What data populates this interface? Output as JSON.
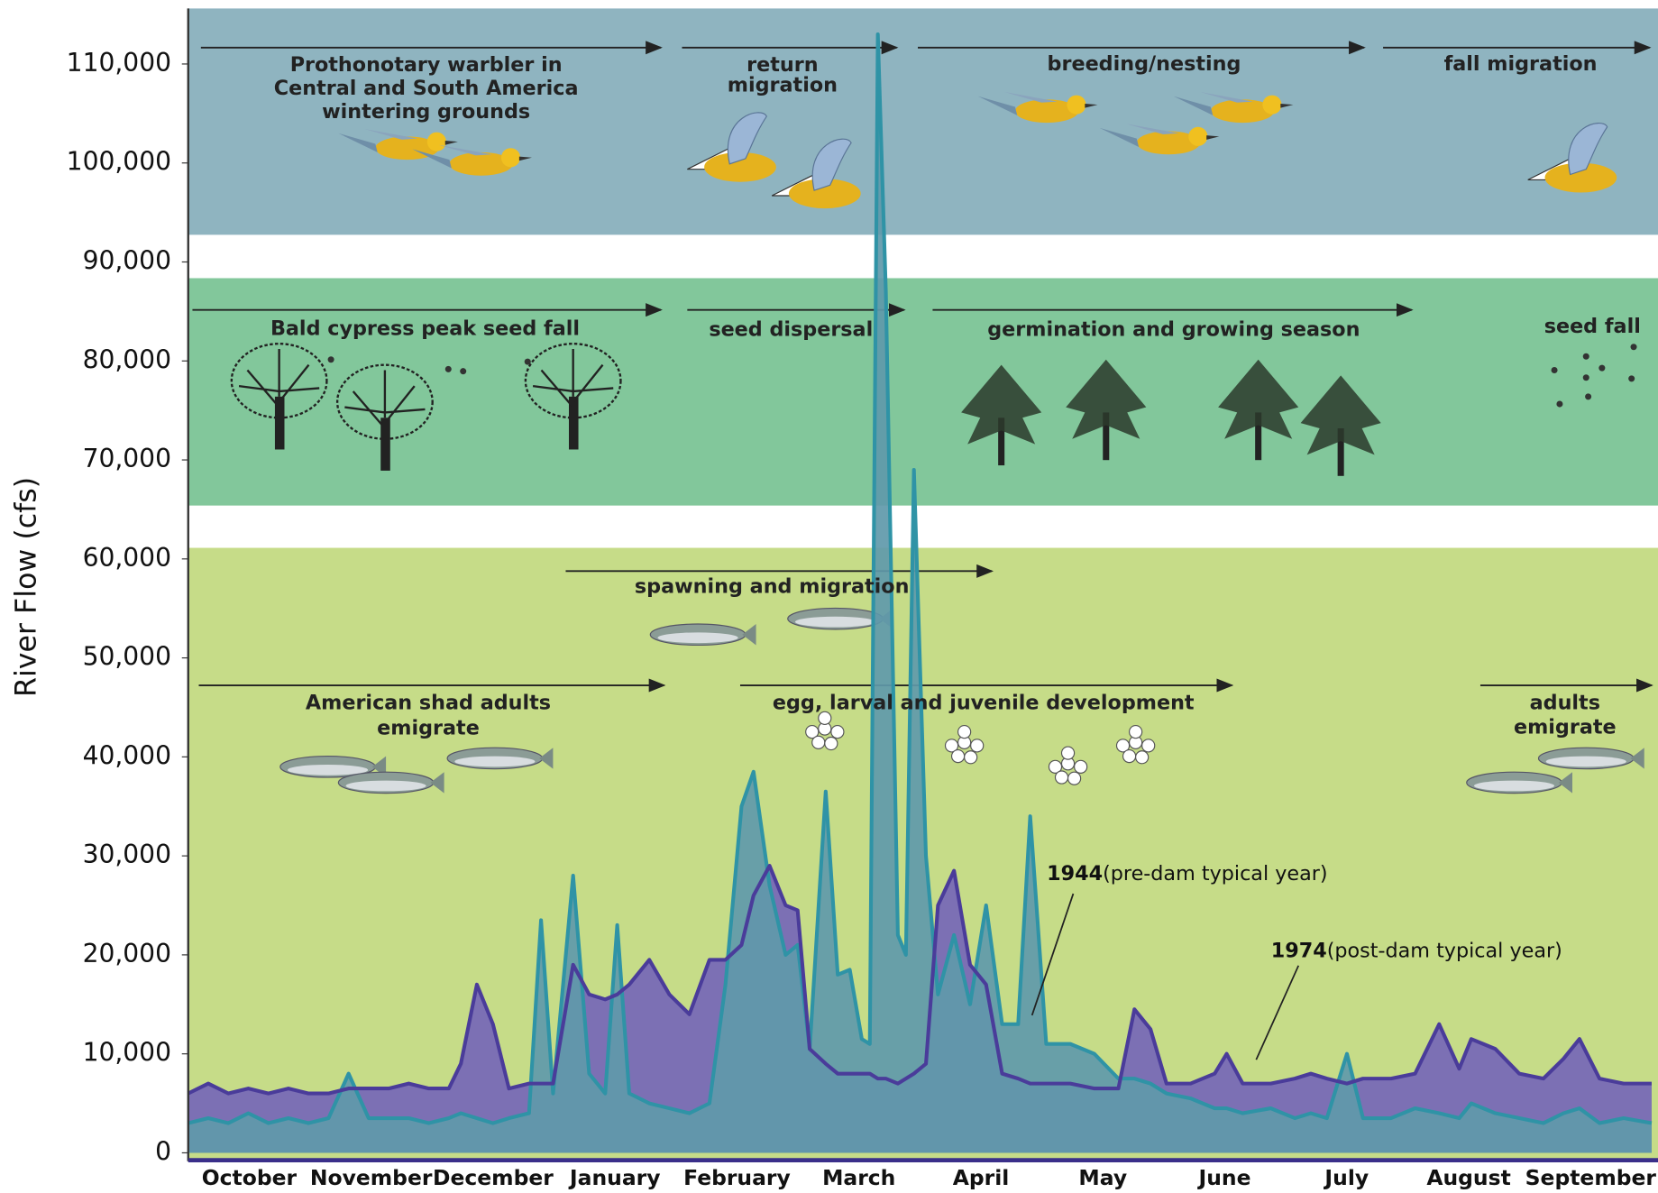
{
  "chart_data": {
    "type": "area",
    "ylabel": "River Flow (cfs)",
    "categories": [
      "October",
      "November",
      "December",
      "January",
      "February",
      "March",
      "April",
      "May",
      "June",
      "July",
      "August",
      "September"
    ],
    "xlim": [
      0,
      365
    ],
    "ylim": [
      -1000,
      115500
    ],
    "yticks": [
      0,
      {
        "value": 10000,
        "label": "10,000"
      },
      {
        "value": 20000,
        "label": "20,000"
      },
      {
        "value": 30000,
        "label": "30,000"
      },
      {
        "value": 40000,
        "label": "40,000"
      },
      {
        "value": 50000,
        "label": "50,000"
      },
      {
        "value": 60000,
        "label": "60,000"
      },
      {
        "value": 70000,
        "label": "70,000"
      },
      {
        "value": 80000,
        "label": "80,000"
      },
      {
        "value": 90000,
        "label": "90,000"
      },
      {
        "value": 100000,
        "label": "100,000"
      },
      {
        "value": 110000,
        "label": "110,000"
      }
    ],
    "grid": false,
    "x": [
      0,
      5,
      10,
      15,
      20,
      25,
      30,
      35,
      40,
      45,
      50,
      55,
      60,
      65,
      68,
      72,
      76,
      80,
      85,
      88,
      91,
      96,
      100,
      104,
      107,
      110,
      115,
      120,
      125,
      130,
      134,
      138,
      141,
      145,
      149,
      152,
      155,
      159,
      162,
      165,
      168,
      170,
      172,
      174,
      177,
      179,
      181,
      184,
      187,
      191,
      195,
      199,
      203,
      207,
      210,
      214,
      220,
      226,
      232,
      236,
      240,
      244,
      250,
      256,
      259,
      263,
      270,
      276,
      280,
      284,
      289,
      293,
      300,
      306,
      312,
      317,
      320,
      326,
      332,
      338,
      343,
      347,
      352,
      358,
      365
    ],
    "series": [
      {
        "name": "1974",
        "description": "(post-dam typical year)",
        "color": "#4a3c9a",
        "fill": "#7c70b4",
        "values": [
          6000,
          7000,
          6000,
          6500,
          6000,
          6500,
          6000,
          6000,
          6500,
          6500,
          6500,
          7000,
          6500,
          6500,
          9000,
          17000,
          13000,
          6500,
          7000,
          7000,
          7000,
          19000,
          16000,
          15500,
          16000,
          17000,
          19500,
          16000,
          14000,
          19500,
          19500,
          21000,
          26000,
          29000,
          25000,
          24500,
          10500,
          9000,
          8000,
          8000,
          8000,
          8000,
          7500,
          7500,
          7000,
          7500,
          8000,
          9000,
          25000,
          28500,
          19000,
          17000,
          8000,
          7500,
          7000,
          7000,
          7000,
          6500,
          6500,
          14500,
          12500,
          7000,
          7000,
          8000,
          10000,
          7000,
          7000,
          7500,
          8000,
          7500,
          7000,
          7500,
          7500,
          8000,
          13000,
          8500,
          11500,
          10500,
          8000,
          7500,
          9500,
          11500,
          7500,
          7000,
          7000
        ]
      },
      {
        "name": "1944",
        "description": "(pre-dam typical year)",
        "color": "#2f93a6",
        "fill": "#5f99aa",
        "values": [
          3000,
          3500,
          3000,
          4000,
          3000,
          3500,
          3000,
          3500,
          8000,
          3500,
          3500,
          3500,
          3000,
          3500,
          4000,
          3500,
          3000,
          3500,
          4000,
          23500,
          6000,
          28000,
          8000,
          6000,
          23000,
          6000,
          5000,
          4500,
          4000,
          5000,
          17000,
          35000,
          38500,
          27000,
          20000,
          21000,
          10500,
          36500,
          18000,
          18500,
          11500,
          11000,
          113000,
          87000,
          22000,
          20000,
          69000,
          30000,
          16000,
          22000,
          15000,
          25000,
          13000,
          13000,
          34000,
          11000,
          11000,
          10000,
          7500,
          7500,
          7000,
          6000,
          5500,
          4500,
          4500,
          4000,
          4500,
          3500,
          4000,
          3500,
          10000,
          3500,
          3500,
          4500,
          4000,
          3500,
          5000,
          4000,
          3500,
          3000,
          4000,
          4500,
          3000,
          3500,
          3000
        ]
      }
    ],
    "annotations": [
      [
        "Prothonotary warbler in",
        "Central and South America",
        "wintering grounds"
      ],
      [
        "return",
        "migration"
      ],
      [
        "breeding/nesting"
      ],
      [
        "fall migration"
      ],
      [
        "Bald cypress peak seed fall"
      ],
      [
        "seed dispersal"
      ],
      [
        "germination and growing season"
      ],
      [
        "seed fall"
      ],
      [
        "spawning and migration"
      ],
      [
        "American shad adults",
        "emigrate"
      ],
      [
        "egg, larval and juvenile development"
      ],
      [
        "adults",
        "emigrate"
      ]
    ]
  }
}
